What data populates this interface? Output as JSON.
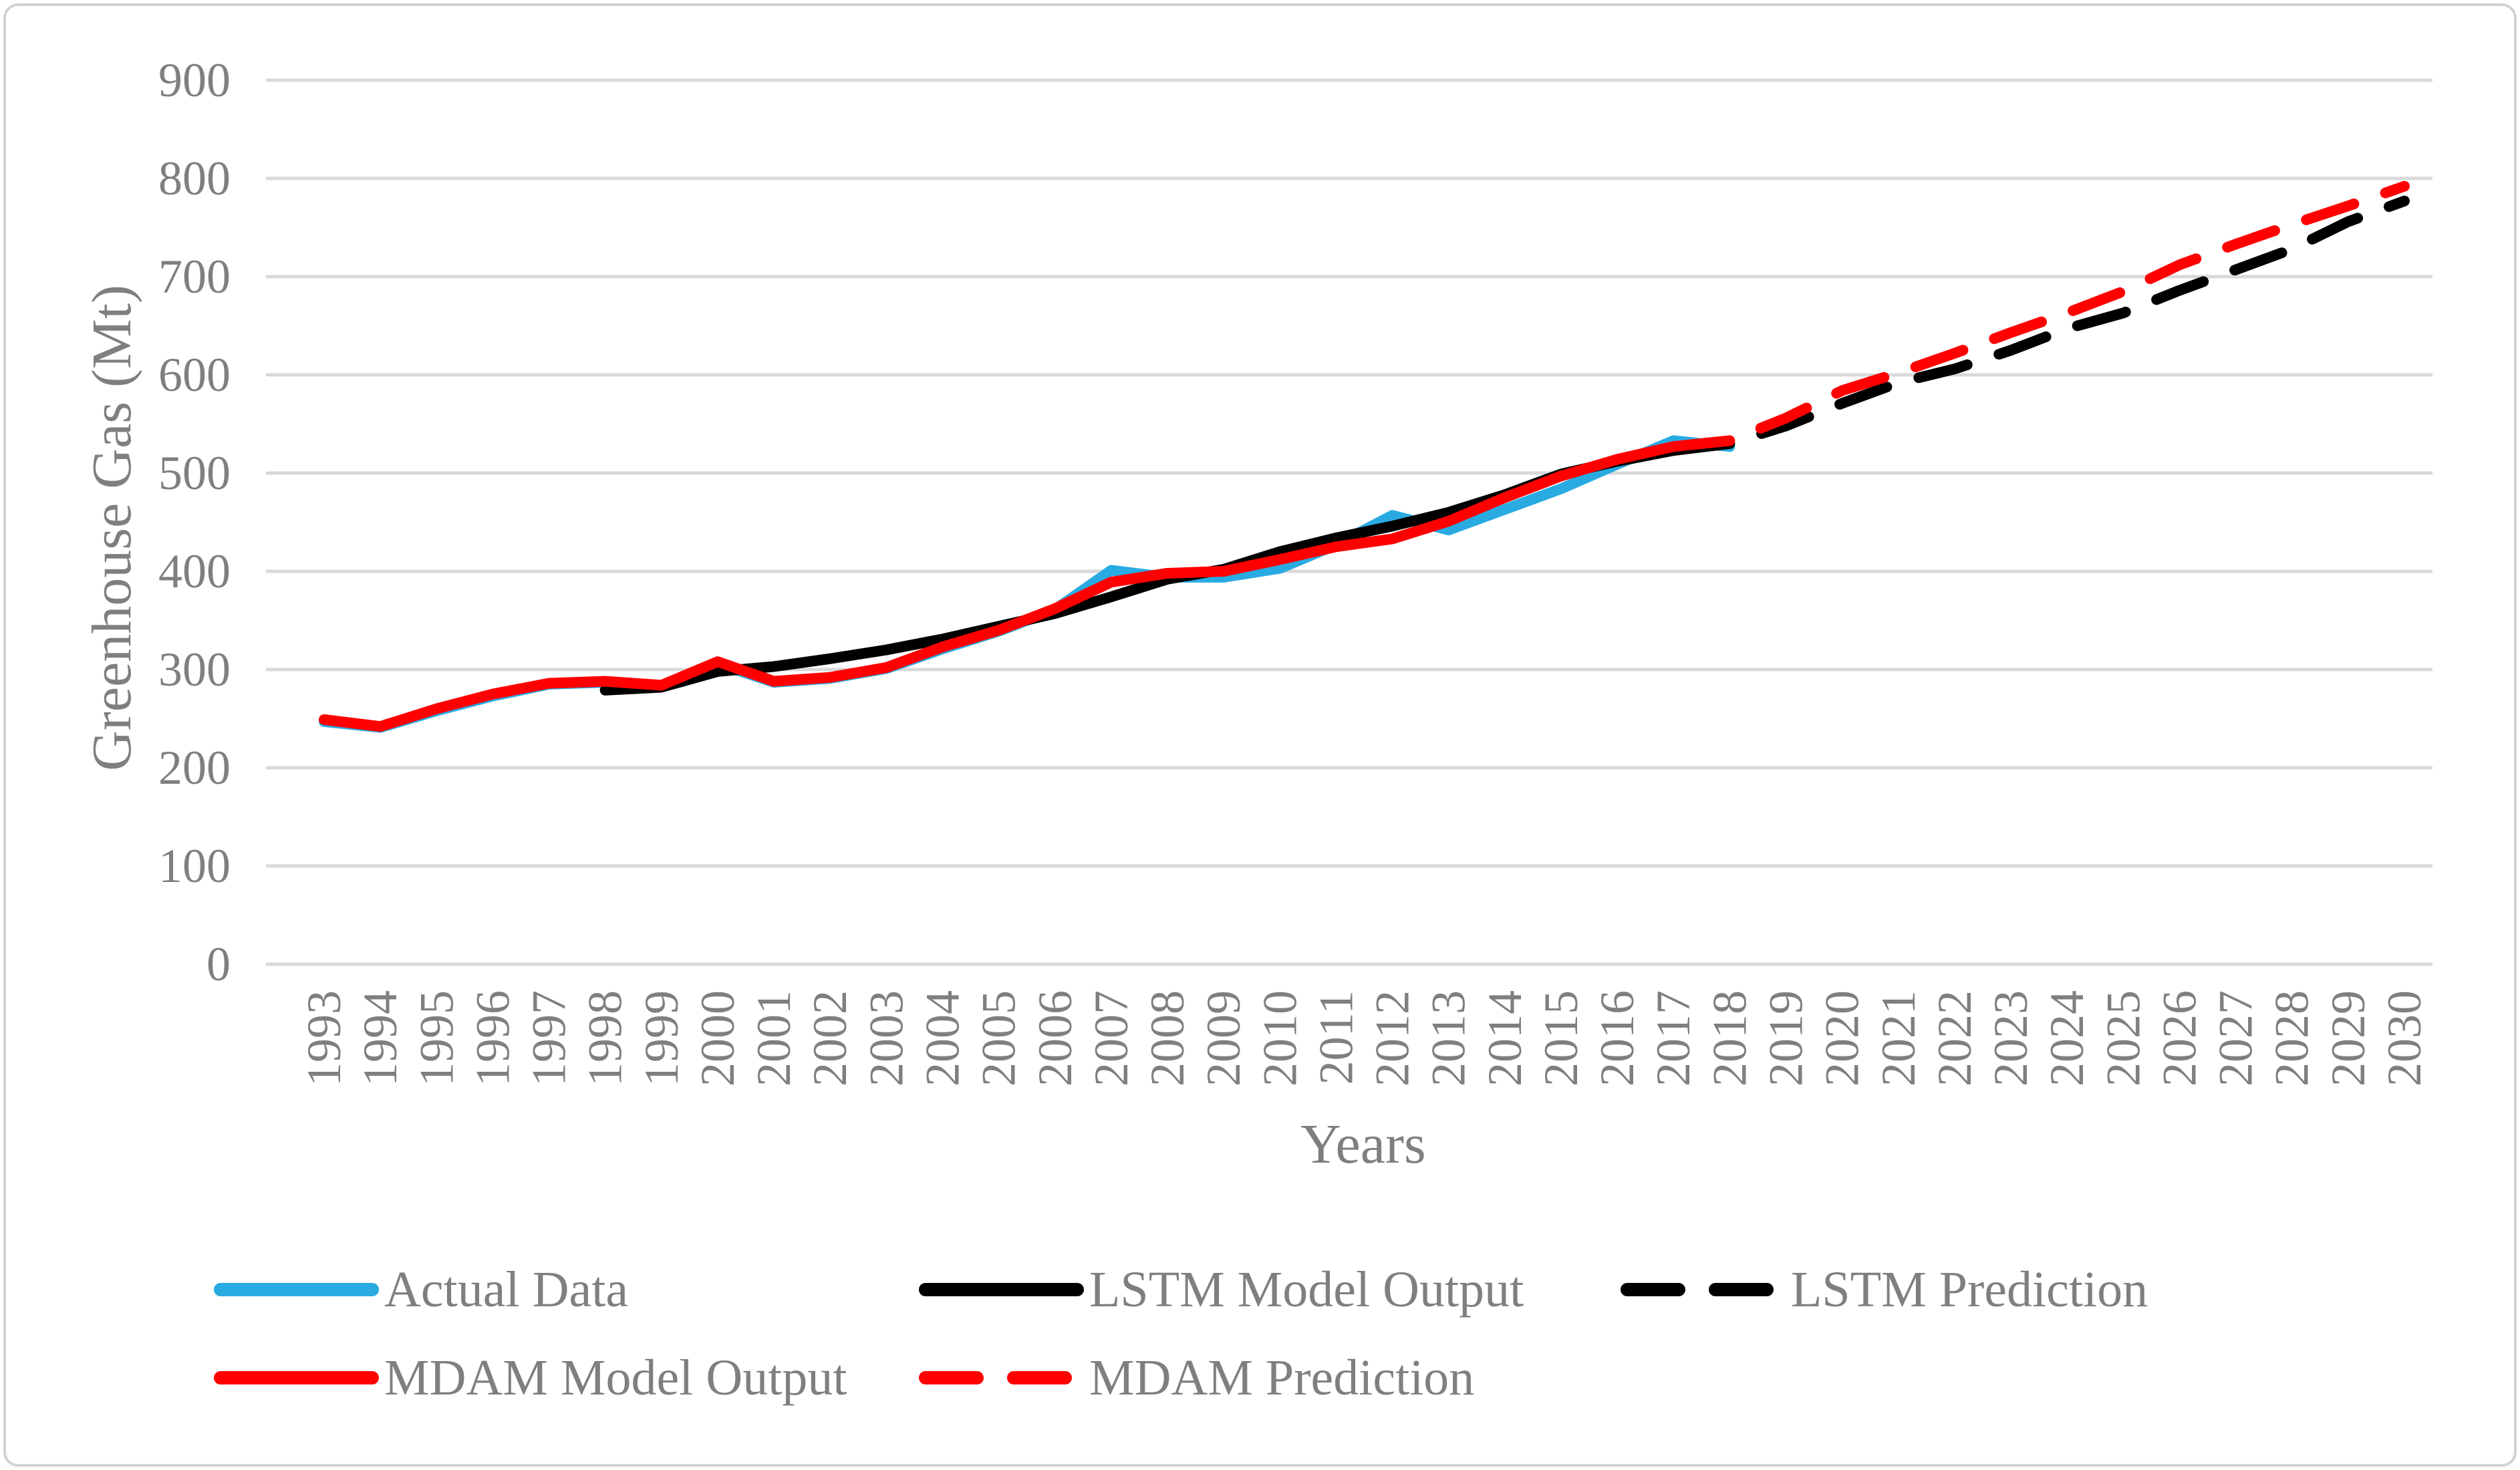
{
  "chart_data": {
    "type": "line",
    "title": "",
    "xlabel": "Years",
    "ylabel": "Greenhouse Gas (Mt)",
    "ylim": [
      0,
      900
    ],
    "yticks": [
      0,
      100,
      200,
      300,
      400,
      500,
      600,
      700,
      800,
      900
    ],
    "x_years": [
      1993,
      1994,
      1995,
      1996,
      1997,
      1998,
      1999,
      2000,
      2001,
      2002,
      2003,
      2004,
      2005,
      2006,
      2007,
      2008,
      2009,
      2010,
      2011,
      2012,
      2013,
      2014,
      2015,
      2016,
      2017,
      2018,
      2019,
      2020,
      2021,
      2022,
      2023,
      2024,
      2025,
      2026,
      2027,
      2028,
      2029,
      2030
    ],
    "grid": "horizontal",
    "grid_color": "#D9D9D9",
    "text_color": "#7f7f7f",
    "legend_position": "bottom",
    "series": [
      {
        "name": "Actual Data",
        "color": "#29ABE2",
        "style": "solid",
        "start_year": 1993,
        "values": [
          247,
          241,
          258,
          273,
          285,
          287,
          283,
          306,
          287,
          291,
          301,
          321,
          339,
          361,
          401,
          394,
          394,
          403,
          427,
          457,
          442,
          463,
          484,
          509,
          533,
          527
        ]
      },
      {
        "name": "LSTM Model Output",
        "color": "#000000",
        "style": "solid",
        "start_year": 1998,
        "values": [
          279,
          282,
          298,
          303,
          311,
          320,
          331,
          344,
          357,
          374,
          392,
          402,
          420,
          434,
          446,
          460,
          478,
          499,
          512,
          523,
          530
        ]
      },
      {
        "name": "MDAM Model Output",
        "color": "#FF0000",
        "style": "solid",
        "start_year": 1993,
        "values": [
          249,
          242,
          260,
          275,
          286,
          288,
          284,
          308,
          288,
          292,
          302,
          323,
          340,
          362,
          389,
          398,
          400,
          412,
          425,
          433,
          451,
          475,
          497,
          514,
          527,
          533
        ]
      },
      {
        "name": "LSTM Prediction",
        "color": "#000000",
        "style": "dashed",
        "start_year": 2018,
        "values": [
          530,
          548,
          571,
          592,
          606,
          625,
          647,
          663,
          686,
          707,
          728,
          756,
          777
        ]
      },
      {
        "name": "MDAM Prediction",
        "color": "#FF0000",
        "style": "dashed",
        "start_year": 2018,
        "values": [
          533,
          556,
          584,
          602,
          622,
          643,
          663,
          685,
          712,
          733,
          753,
          772,
          792
        ]
      }
    ],
    "legend": {
      "rows": [
        [
          0,
          1,
          3
        ],
        [
          2,
          4
        ]
      ]
    }
  }
}
